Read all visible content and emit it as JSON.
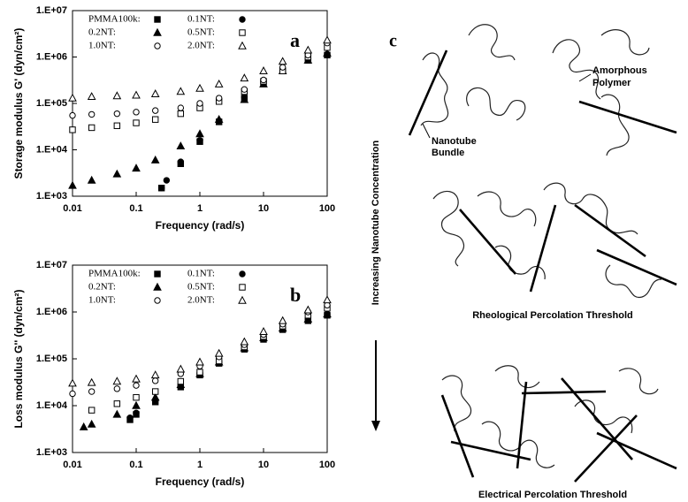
{
  "chart_data": [
    {
      "type": "scatter",
      "panel_label": "a",
      "x_label": "Frequency (rad/s)",
      "y_label": "Storage modulus G' (dyn/cm²)",
      "xscale": "log",
      "yscale": "log",
      "grid": false,
      "legend": "upper left",
      "xlim": [
        0.01,
        100
      ],
      "xticks": [
        0.01,
        0.1,
        1,
        10,
        100
      ],
      "ylim": [
        1000,
        10000000
      ],
      "yticks": [
        {
          "value": 1000,
          "label": "1.E+03"
        },
        {
          "value": 10000,
          "label": "1.E+04"
        },
        {
          "value": 100000,
          "label": "1.E+05"
        },
        {
          "value": 1000000,
          "label": "1.E+06"
        },
        {
          "value": 10000000,
          "label": "1.E+07"
        }
      ],
      "series": [
        {
          "name": "PMMA100k:",
          "color": "#000000",
          "marker": "square-filled",
          "x": [
            0.25,
            0.5,
            1,
            2,
            5,
            10,
            20,
            50,
            100
          ],
          "values": [
            1500,
            5000,
            15000,
            40000,
            130000,
            280000,
            500000,
            850000,
            1100000
          ]
        },
        {
          "name": "0.1NT:",
          "color": "#000000",
          "marker": "circle-filled",
          "x": [
            0.25,
            0.3,
            0.5,
            1,
            2,
            5,
            10,
            20,
            50,
            100
          ],
          "values": [
            1500,
            2200,
            5500,
            16000,
            42000,
            135000,
            290000,
            520000,
            880000,
            1150000
          ]
        },
        {
          "name": "0.2NT:",
          "color": "#000000",
          "marker": "triangle-filled",
          "x": [
            0.01,
            0.02,
            0.05,
            0.1,
            0.2,
            0.5,
            1,
            2,
            5,
            10,
            20,
            50,
            100
          ],
          "values": [
            1700,
            2200,
            3000,
            4000,
            6000,
            12000,
            22000,
            45000,
            120000,
            260000,
            500000,
            850000,
            1200000
          ]
        },
        {
          "name": "0.5NT:",
          "color": "#000000",
          "marker": "square-open",
          "x": [
            0.01,
            0.02,
            0.05,
            0.1,
            0.2,
            0.5,
            1,
            2,
            5,
            10,
            20,
            50,
            100
          ],
          "values": [
            27000,
            30000,
            33000,
            38000,
            45000,
            60000,
            80000,
            110000,
            180000,
            300000,
            500000,
            1000000,
            1600000
          ]
        },
        {
          "name": "1.0NT:",
          "color": "#000000",
          "marker": "circle-open",
          "x": [
            0.01,
            0.02,
            0.05,
            0.1,
            0.2,
            0.5,
            1,
            2,
            5,
            10,
            20,
            50,
            100
          ],
          "values": [
            55000,
            58000,
            60000,
            65000,
            70000,
            80000,
            100000,
            130000,
            200000,
            320000,
            600000,
            1100000,
            2000000
          ]
        },
        {
          "name": "2.0NT:",
          "color": "#000000",
          "marker": "triangle-open",
          "x": [
            0.01,
            0.02,
            0.05,
            0.1,
            0.2,
            0.5,
            1,
            2,
            5,
            10,
            20,
            50,
            100
          ],
          "values": [
            130000,
            140000,
            145000,
            150000,
            160000,
            180000,
            210000,
            260000,
            350000,
            500000,
            800000,
            1400000,
            2300000
          ]
        }
      ]
    },
    {
      "type": "scatter",
      "panel_label": "b",
      "x_label": "Frequency (rad/s)",
      "y_label": "Loss modulus G'' (dyn/cm²)",
      "xscale": "log",
      "yscale": "log",
      "grid": false,
      "legend": "upper left",
      "xlim": [
        0.01,
        100
      ],
      "xticks": [
        0.01,
        0.1,
        1,
        10,
        100
      ],
      "ylim": [
        1000,
        10000000
      ],
      "yticks": [
        {
          "value": 1000,
          "label": "1.E+03"
        },
        {
          "value": 10000,
          "label": "1.E+04"
        },
        {
          "value": 100000,
          "label": "1.E+05"
        },
        {
          "value": 1000000,
          "label": "1.E+06"
        },
        {
          "value": 10000000,
          "label": "1.E+07"
        }
      ],
      "series": [
        {
          "name": "PMMA100k:",
          "color": "#000000",
          "marker": "square-filled",
          "x": [
            0.08,
            0.1,
            0.2,
            0.5,
            1,
            2,
            5,
            10,
            20,
            50,
            100
          ],
          "values": [
            5000,
            6500,
            12000,
            25000,
            45000,
            80000,
            160000,
            260000,
            420000,
            650000,
            850000
          ]
        },
        {
          "name": "0.1NT:",
          "color": "#000000",
          "marker": "circle-filled",
          "x": [
            0.08,
            0.1,
            0.2,
            0.5,
            1,
            2,
            5,
            10,
            20,
            50,
            100
          ],
          "values": [
            5500,
            7000,
            13000,
            27000,
            48000,
            85000,
            170000,
            280000,
            450000,
            700000,
            900000
          ]
        },
        {
          "name": "0.2NT:",
          "color": "#000000",
          "marker": "triangle-filled",
          "x": [
            0.015,
            0.02,
            0.05,
            0.1,
            0.2,
            0.5,
            1,
            2,
            5,
            10,
            20,
            50,
            100
          ],
          "values": [
            3500,
            4000,
            6500,
            10000,
            15000,
            28000,
            48000,
            85000,
            170000,
            280000,
            450000,
            700000,
            900000
          ]
        },
        {
          "name": "0.5NT:",
          "color": "#000000",
          "marker": "square-open",
          "x": [
            0.02,
            0.05,
            0.1,
            0.2,
            0.5,
            1,
            2,
            5,
            10,
            20,
            50,
            100
          ],
          "values": [
            8000,
            11000,
            15000,
            20000,
            33000,
            52000,
            90000,
            180000,
            300000,
            500000,
            850000,
            1200000
          ]
        },
        {
          "name": "1.0NT:",
          "color": "#000000",
          "marker": "circle-open",
          "x": [
            0.01,
            0.02,
            0.05,
            0.1,
            0.2,
            0.5,
            1,
            2,
            5,
            10,
            20,
            50,
            100
          ],
          "values": [
            18000,
            20000,
            23000,
            27000,
            34000,
            48000,
            70000,
            110000,
            200000,
            330000,
            550000,
            1000000,
            1400000
          ]
        },
        {
          "name": "2.0NT:",
          "color": "#000000",
          "marker": "triangle-open",
          "x": [
            0.01,
            0.02,
            0.05,
            0.1,
            0.2,
            0.5,
            1,
            2,
            5,
            10,
            20,
            50,
            100
          ],
          "values": [
            30000,
            31000,
            33000,
            37000,
            45000,
            60000,
            85000,
            130000,
            230000,
            380000,
            650000,
            1100000,
            1800000
          ]
        }
      ]
    }
  ],
  "diagram": {
    "label": "c",
    "arrow_label": "Increasing Nanotube Concentration",
    "annotations": [
      "Amorphous",
      "Polymer",
      "Nanotube",
      "Bundle"
    ],
    "thresholds": [
      "Rheological Percolation Threshold",
      "Electrical Percolation Threshold"
    ]
  }
}
